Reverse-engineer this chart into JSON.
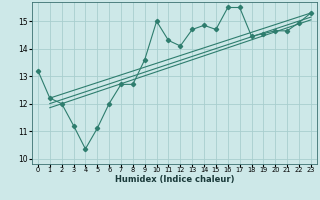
{
  "xlabel": "Humidex (Indice chaleur)",
  "bg_color": "#cde8e8",
  "line_color": "#2e7d6e",
  "grid_color": "#a8cece",
  "xlim": [
    -0.5,
    23.5
  ],
  "ylim": [
    9.8,
    15.7
  ],
  "yticks": [
    10,
    11,
    12,
    13,
    14,
    15
  ],
  "xticks": [
    0,
    1,
    2,
    3,
    4,
    5,
    6,
    7,
    8,
    9,
    10,
    11,
    12,
    13,
    14,
    15,
    16,
    17,
    18,
    19,
    20,
    21,
    22,
    23
  ],
  "line1_x": [
    0,
    1,
    2,
    3,
    4,
    5,
    6,
    7,
    8,
    9,
    10,
    11,
    12,
    13,
    14,
    15,
    16,
    17,
    18,
    19,
    20,
    21,
    22,
    23
  ],
  "line1_y": [
    13.2,
    12.2,
    12.0,
    11.2,
    10.35,
    11.1,
    12.0,
    12.7,
    12.7,
    13.6,
    15.0,
    14.3,
    14.1,
    14.7,
    14.85,
    14.7,
    15.5,
    15.5,
    14.45,
    14.55,
    14.65,
    14.65,
    14.95,
    15.3
  ],
  "line2_x": [
    1,
    23
  ],
  "line2_y": [
    12.2,
    15.3
  ],
  "line3_x": [
    1,
    23
  ],
  "line3_y": [
    12.0,
    15.15
  ],
  "line4_x": [
    1,
    23
  ],
  "line4_y": [
    11.85,
    15.05
  ]
}
